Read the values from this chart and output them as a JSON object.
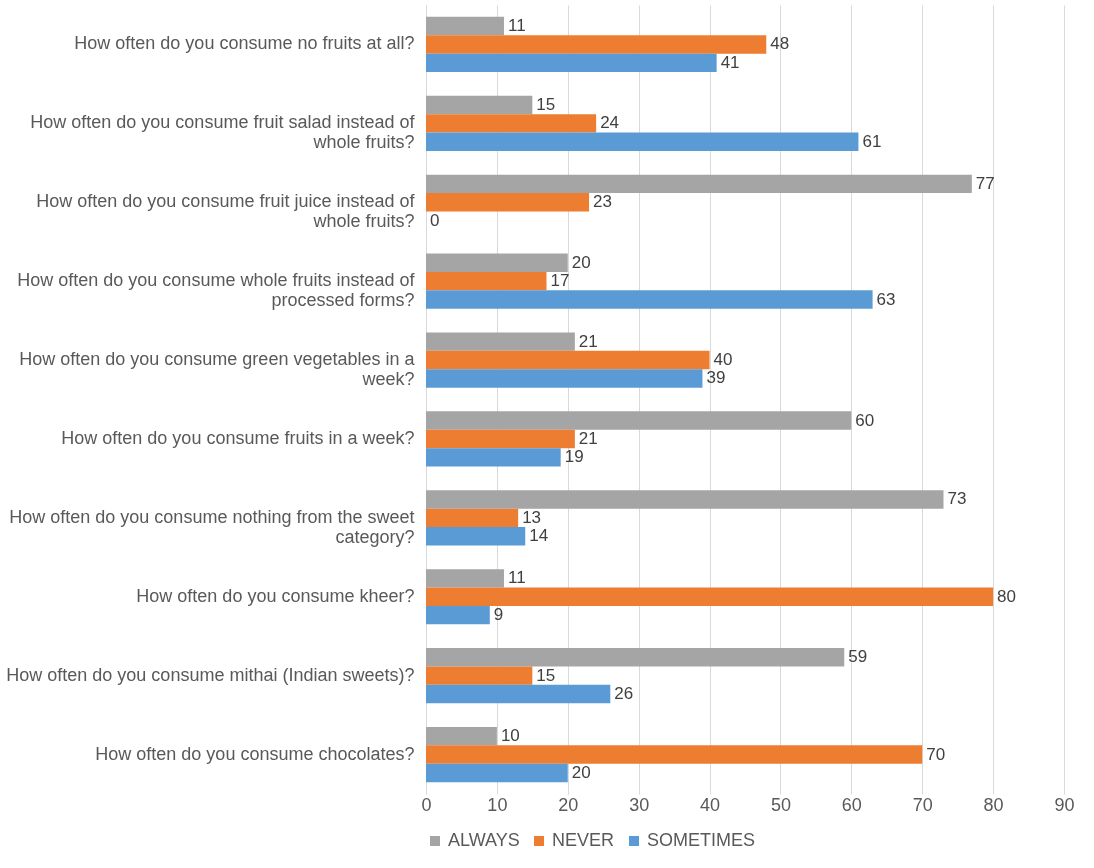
{
  "chart_data": {
    "type": "bar",
    "orientation": "horizontal",
    "categories": [
      "How often do you consume no fruits at all?",
      "How often do you consume fruit salad instead of whole fruits?",
      "How often do you consume fruit juice instead of whole fruits?",
      "How often do you consume whole fruits instead of processed forms?",
      "How often do you consume green vegetables in a week?",
      "How often do you consume fruits in a week?",
      "How often do you consume nothing from the sweet category?",
      "How often do you consume kheer?",
      "How often do you consume mithai (Indian sweets)?",
      "How often do you consume chocolates?"
    ],
    "series": [
      {
        "name": "ALWAYS",
        "color": "#a5a5a5",
        "values": [
          11,
          15,
          77,
          20,
          21,
          60,
          73,
          11,
          59,
          10
        ]
      },
      {
        "name": "NEVER",
        "color": "#ed7d31",
        "values": [
          48,
          24,
          23,
          17,
          40,
          21,
          13,
          80,
          15,
          70
        ]
      },
      {
        "name": "SOMETIMES",
        "color": "#5b9bd5",
        "values": [
          41,
          61,
          0,
          63,
          39,
          19,
          14,
          9,
          26,
          20
        ]
      }
    ],
    "xlim": [
      0,
      90
    ],
    "xticks": [
      0,
      10,
      20,
      30,
      40,
      50,
      60,
      70,
      80,
      90
    ],
    "grid": "x",
    "legend": "bottom",
    "data_labels": true
  }
}
